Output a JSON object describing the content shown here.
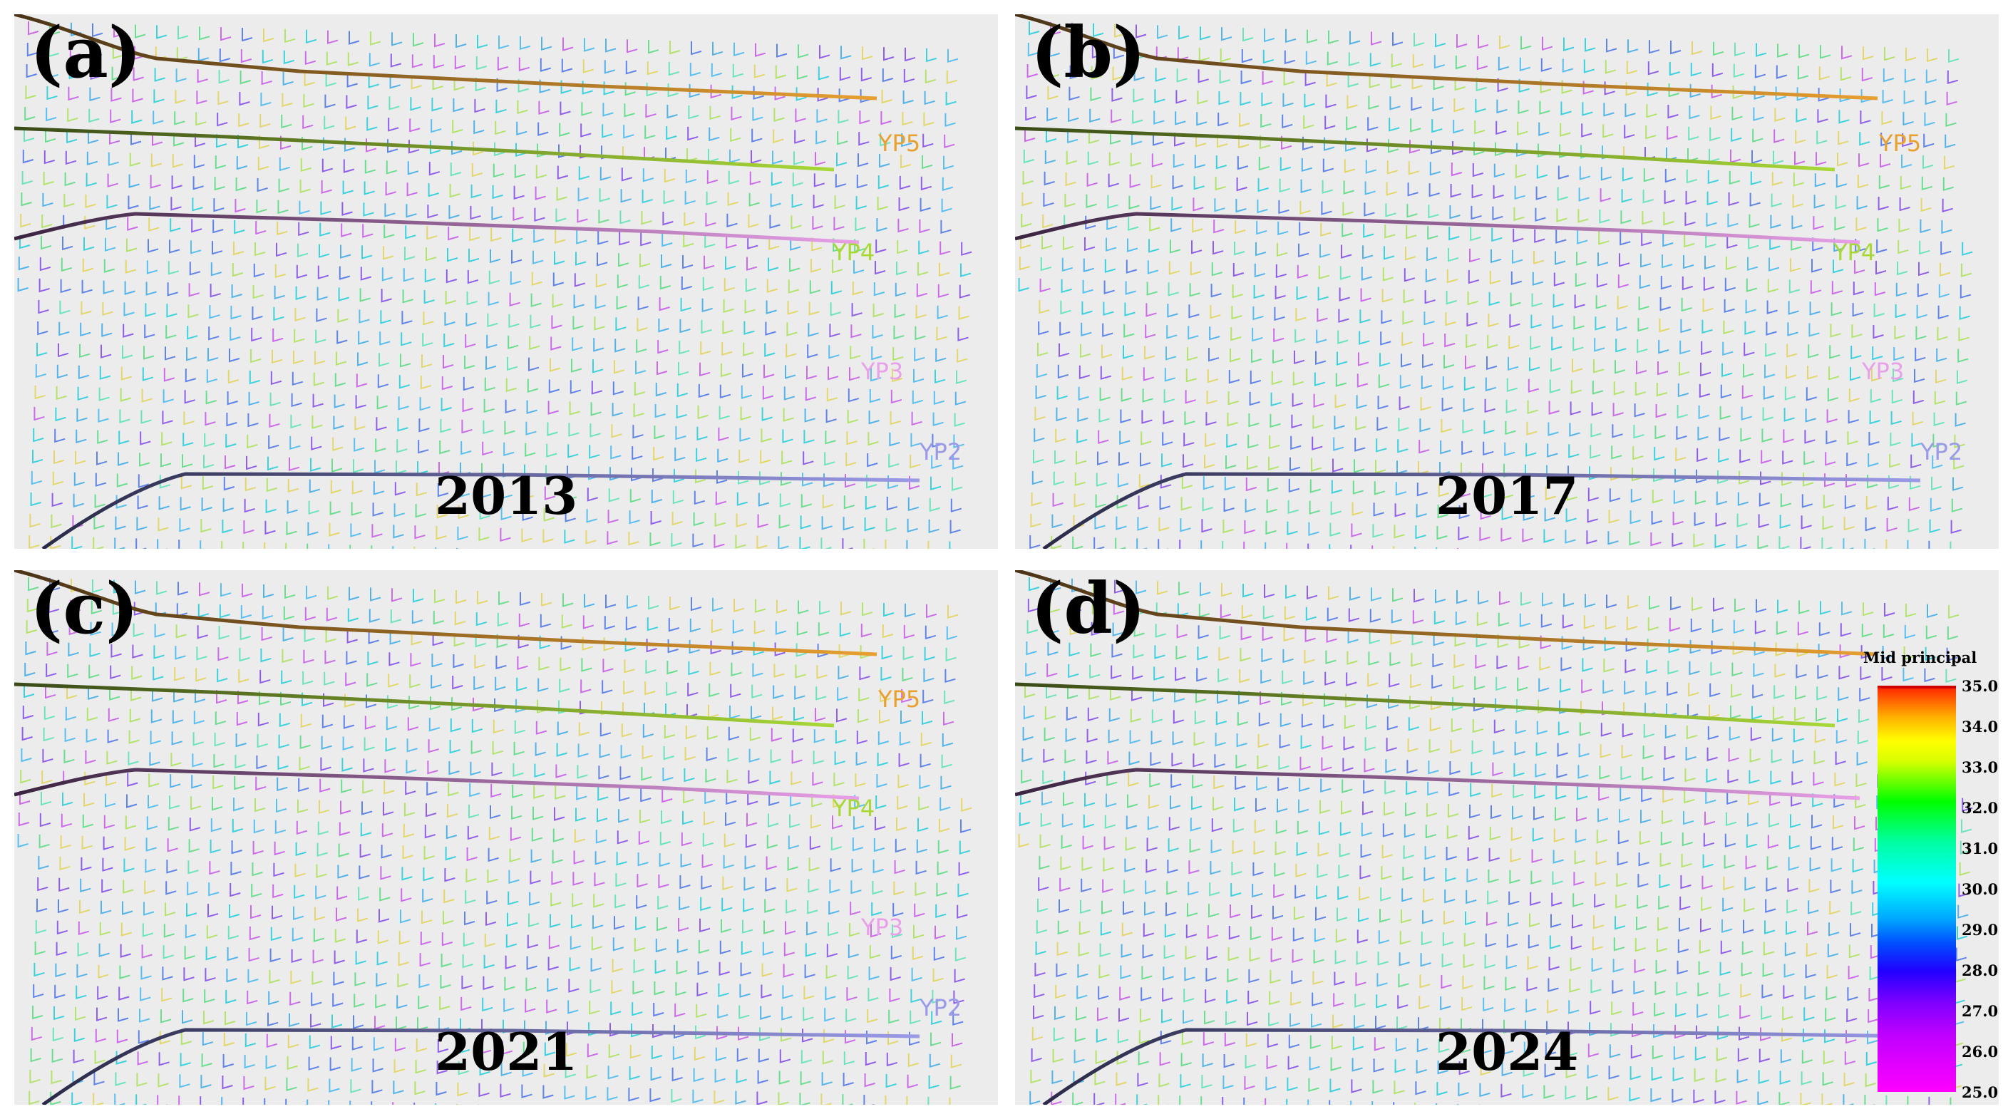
{
  "panels": [
    {
      "id": "a",
      "letter": "(a)",
      "year": "2013"
    },
    {
      "id": "b",
      "letter": "(b)",
      "year": "2017"
    },
    {
      "id": "c",
      "letter": "(c)",
      "year": "2021"
    },
    {
      "id": "d",
      "letter": "(d)",
      "year": "2024"
    }
  ],
  "wells": [
    {
      "label": "YP5",
      "color": "#e8a030"
    },
    {
      "label": "YP4",
      "color": "#a8d838"
    },
    {
      "label": "YP3",
      "color": "#e8a0e8"
    },
    {
      "label": "YP2",
      "color": "#9a9ae8"
    }
  ],
  "colorbar": {
    "title": "Mid principal",
    "ticks": [
      "35.0",
      "34.0",
      "33.0",
      "32.0",
      "31.0",
      "30.0",
      "29.0",
      "28.0",
      "27.0",
      "26.0",
      "25.0"
    ],
    "min": 25.0,
    "max": 35.0
  }
}
